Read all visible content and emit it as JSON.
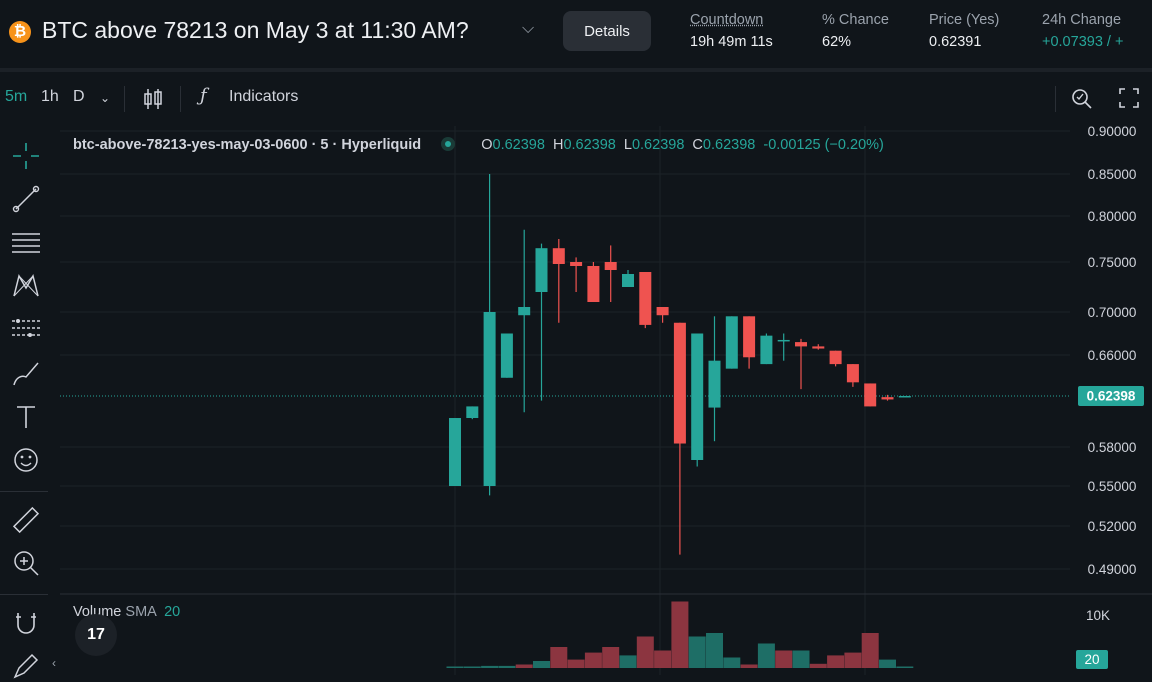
{
  "header": {
    "title": "BTC above 78213 on May 3 at 11:30 AM?",
    "coin_symbol": "₿",
    "details_label": "Details",
    "stats": [
      {
        "label": "Countdown",
        "value": "19h 49m 11s"
      },
      {
        "label": "% Chance",
        "value": "62%"
      },
      {
        "label": "Price (Yes)",
        "value": "0.62391"
      },
      {
        "label": "24h Change",
        "value": "+0.07393 / +"
      }
    ]
  },
  "toolbar": {
    "intervals": [
      "5m",
      "1h",
      "D"
    ],
    "active_interval": "5m",
    "indicators_label": "Indicators"
  },
  "legend": {
    "symbol": "btc-above-78213-yes-may-03-0600 · 5 · Hyperliquid",
    "open_key": "O",
    "open": "0.62398",
    "high_key": "H",
    "high": "0.62398",
    "low_key": "L",
    "low": "0.62398",
    "close_key": "C",
    "close": "0.62398",
    "change": "-0.00125 (−0.20%)"
  },
  "volume": {
    "title": "Volume",
    "sma_label": "SMA",
    "length": "20",
    "axis_label": "10K",
    "scale_badge": "20"
  },
  "colors": {
    "up": "#26a69a",
    "down": "#ef5350",
    "vol_up": "#1e6e66",
    "vol_down": "#8c3540"
  },
  "chart_data": {
    "type": "candlestick",
    "y_ticks": [
      "0.90000",
      "0.85000",
      "0.80000",
      "0.75000",
      "0.70000",
      "0.66000",
      "0.58000",
      "0.55000",
      "0.52000",
      "0.49000"
    ],
    "last_price": "0.62398",
    "candles": [
      {
        "o": 0.55,
        "h": 0.605,
        "l": 0.55,
        "c": 0.605
      },
      {
        "o": 0.605,
        "h": 0.615,
        "l": 0.604,
        "c": 0.615
      },
      {
        "o": 0.55,
        "h": 0.85,
        "l": 0.543,
        "c": 0.7
      },
      {
        "o": 0.64,
        "h": 0.68,
        "l": 0.64,
        "c": 0.68
      },
      {
        "o": 0.697,
        "h": 0.785,
        "l": 0.61,
        "c": 0.705
      },
      {
        "o": 0.72,
        "h": 0.77,
        "l": 0.62,
        "c": 0.765
      },
      {
        "o": 0.765,
        "h": 0.775,
        "l": 0.69,
        "c": 0.748
      },
      {
        "o": 0.75,
        "h": 0.755,
        "l": 0.72,
        "c": 0.746
      },
      {
        "o": 0.746,
        "h": 0.75,
        "l": 0.71,
        "c": 0.71
      },
      {
        "o": 0.75,
        "h": 0.768,
        "l": 0.71,
        "c": 0.742
      },
      {
        "o": 0.725,
        "h": 0.742,
        "l": 0.725,
        "c": 0.738
      },
      {
        "o": 0.74,
        "h": 0.74,
        "l": 0.685,
        "c": 0.688
      },
      {
        "o": 0.705,
        "h": 0.705,
        "l": 0.69,
        "c": 0.697
      },
      {
        "o": 0.69,
        "h": 0.69,
        "l": 0.5,
        "c": 0.583
      },
      {
        "o": 0.57,
        "h": 0.68,
        "l": 0.565,
        "c": 0.68
      },
      {
        "o": 0.614,
        "h": 0.696,
        "l": 0.585,
        "c": 0.655
      },
      {
        "o": 0.648,
        "h": 0.696,
        "l": 0.648,
        "c": 0.696
      },
      {
        "o": 0.696,
        "h": 0.696,
        "l": 0.648,
        "c": 0.658
      },
      {
        "o": 0.652,
        "h": 0.68,
        "l": 0.652,
        "c": 0.678
      },
      {
        "o": 0.674,
        "h": 0.68,
        "l": 0.655,
        "c": 0.674
      },
      {
        "o": 0.672,
        "h": 0.675,
        "l": 0.63,
        "c": 0.668
      },
      {
        "o": 0.668,
        "h": 0.67,
        "l": 0.665,
        "c": 0.666
      },
      {
        "o": 0.664,
        "h": 0.664,
        "l": 0.65,
        "c": 0.652
      },
      {
        "o": 0.652,
        "h": 0.652,
        "l": 0.632,
        "c": 0.636
      },
      {
        "o": 0.635,
        "h": 0.635,
        "l": 0.615,
        "c": 0.615
      },
      {
        "o": 0.623,
        "h": 0.625,
        "l": 0.62,
        "c": 0.621
      },
      {
        "o": 0.624,
        "h": 0.624,
        "l": 0.624,
        "c": 0.624
      }
    ],
    "volumes": [
      {
        "v": 0.02,
        "up": true
      },
      {
        "v": 0.02,
        "up": true
      },
      {
        "v": 0.03,
        "up": true
      },
      {
        "v": 0.03,
        "up": true
      },
      {
        "v": 0.05,
        "up": false
      },
      {
        "v": 0.1,
        "up": true
      },
      {
        "v": 0.3,
        "up": false
      },
      {
        "v": 0.12,
        "up": false
      },
      {
        "v": 0.22,
        "up": false
      },
      {
        "v": 0.3,
        "up": false
      },
      {
        "v": 0.18,
        "up": true
      },
      {
        "v": 0.45,
        "up": false
      },
      {
        "v": 0.25,
        "up": false
      },
      {
        "v": 0.95,
        "up": false
      },
      {
        "v": 0.45,
        "up": true
      },
      {
        "v": 0.5,
        "up": true
      },
      {
        "v": 0.15,
        "up": true
      },
      {
        "v": 0.05,
        "up": false
      },
      {
        "v": 0.35,
        "up": true
      },
      {
        "v": 0.25,
        "up": false
      },
      {
        "v": 0.25,
        "up": true
      },
      {
        "v": 0.06,
        "up": false
      },
      {
        "v": 0.18,
        "up": false
      },
      {
        "v": 0.22,
        "up": false
      },
      {
        "v": 0.5,
        "up": false
      },
      {
        "v": 0.12,
        "up": true
      },
      {
        "v": 0.02,
        "up": true
      }
    ]
  }
}
